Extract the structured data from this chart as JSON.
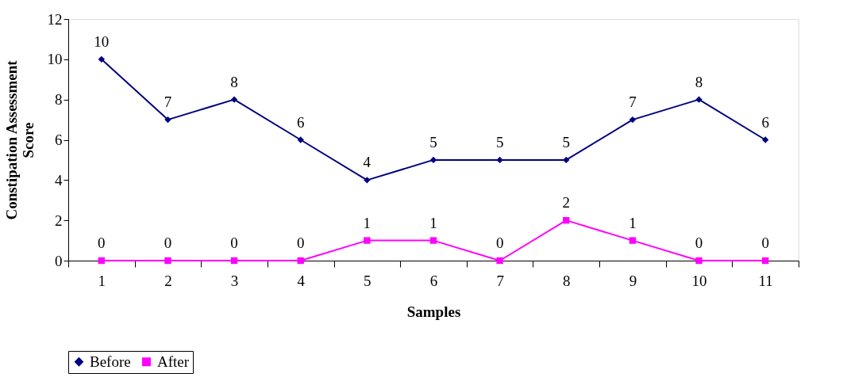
{
  "chart_data": {
    "type": "line",
    "xlabel": "Samples",
    "ylabel": "Constipation Assessment Score",
    "categories": [
      "1",
      "2",
      "3",
      "4",
      "5",
      "6",
      "7",
      "8",
      "9",
      "10",
      "11"
    ],
    "series": [
      {
        "name": "Before",
        "color": "#000080",
        "marker": "diamond",
        "values": [
          10,
          7,
          8,
          6,
          4,
          5,
          5,
          5,
          7,
          8,
          6
        ]
      },
      {
        "name": "After",
        "color": "#ff00ff",
        "marker": "square",
        "values": [
          0,
          0,
          0,
          0,
          1,
          1,
          0,
          2,
          1,
          0,
          0
        ]
      }
    ],
    "ylim": [
      0,
      12
    ],
    "yticks": [
      0,
      2,
      4,
      6,
      8,
      10,
      12
    ],
    "grid": false,
    "legend": "bottom",
    "data_labels": true,
    "line_style": "solid"
  }
}
